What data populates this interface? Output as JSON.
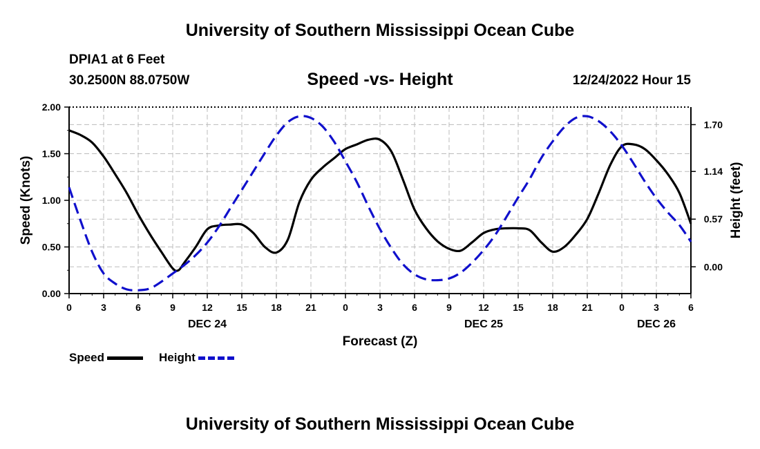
{
  "header": {
    "title": "University of Southern Mississippi Ocean Cube",
    "station": "DPIA1 at 6 Feet",
    "coords": "30.2500N  88.0750W",
    "subtitle": "Speed -vs- Height",
    "datetime": "12/24/2022 Hour 15"
  },
  "footer": {
    "title": "University of Southern Mississippi Ocean Cube"
  },
  "legend": {
    "speed_label": "Speed",
    "height_label": "Height"
  },
  "chart_data": {
    "type": "line",
    "title": "Speed -vs- Height",
    "xlabel": "Forecast (Z)",
    "ylabel": "Speed (Knots)",
    "y2label": "Height (feet)",
    "x_range": [
      0,
      54
    ],
    "x_tick_values": [
      0,
      3,
      6,
      9,
      12,
      15,
      18,
      21,
      24,
      27,
      30,
      33,
      36,
      39,
      42,
      45,
      48,
      51,
      54
    ],
    "x_tick_labels": [
      "0",
      "3",
      "6",
      "9",
      "12",
      "15",
      "18",
      "21",
      "0",
      "3",
      "6",
      "9",
      "12",
      "15",
      "18",
      "21",
      "0",
      "3",
      "6"
    ],
    "date_labels": [
      {
        "x": 12,
        "label": "DEC 24"
      },
      {
        "x": 36,
        "label": "DEC 25"
      },
      {
        "x": 51,
        "label": "DEC 26"
      }
    ],
    "y_left": {
      "ylim": [
        0,
        2
      ],
      "ticks": [
        0,
        0.5,
        1,
        1.5,
        2
      ],
      "tick_labels": [
        "0.00",
        "0.50",
        "1.00",
        "1.50",
        "2.00"
      ]
    },
    "y_right": {
      "ylim": [
        -0.32,
        1.91
      ],
      "ticks": [
        0,
        0.57,
        1.14,
        1.7
      ],
      "tick_labels": [
        "0.00",
        "0.57",
        "1.14",
        "1.70"
      ]
    },
    "grid": true,
    "series": [
      {
        "name": "Speed",
        "axis": "left",
        "color": "#000000",
        "style": "solid",
        "x": [
          0,
          1,
          2,
          3,
          4,
          5,
          6,
          7,
          8,
          9,
          9.5,
          10,
          11,
          12,
          13,
          14,
          15,
          16,
          17,
          18,
          19,
          20,
          21,
          22,
          23,
          24,
          25,
          26,
          27,
          28,
          29,
          30,
          31,
          32,
          33,
          34,
          35,
          36,
          37,
          38,
          39,
          40,
          41,
          42,
          43,
          44,
          45,
          46,
          47,
          48,
          49,
          50,
          51,
          52,
          53,
          54
        ],
        "y": [
          1.75,
          1.7,
          1.62,
          1.47,
          1.28,
          1.08,
          0.85,
          0.64,
          0.45,
          0.27,
          0.25,
          0.33,
          0.5,
          0.69,
          0.73,
          0.74,
          0.74,
          0.65,
          0.5,
          0.44,
          0.58,
          0.98,
          1.22,
          1.35,
          1.45,
          1.55,
          1.6,
          1.65,
          1.65,
          1.52,
          1.22,
          0.9,
          0.7,
          0.56,
          0.48,
          0.46,
          0.55,
          0.65,
          0.69,
          0.7,
          0.7,
          0.68,
          0.55,
          0.45,
          0.5,
          0.63,
          0.8,
          1.08,
          1.38,
          1.58,
          1.6,
          1.55,
          1.43,
          1.28,
          1.08,
          0.75
        ]
      },
      {
        "name": "Height",
        "axis": "right",
        "color": "#1010cc",
        "style": "dashed",
        "x": [
          0,
          1,
          2,
          3,
          4,
          5,
          6,
          7,
          8,
          9,
          10,
          11,
          12,
          13,
          14,
          15,
          16,
          17,
          18,
          19,
          20,
          21,
          22,
          23,
          24,
          25,
          26,
          27,
          28,
          29,
          30,
          31,
          32,
          33,
          34,
          35,
          36,
          37,
          38,
          39,
          40,
          41,
          42,
          43,
          44,
          45,
          46,
          47,
          48,
          49,
          50,
          51,
          52,
          53,
          54
        ],
        "y": [
          0.95,
          0.55,
          0.18,
          -0.08,
          -0.2,
          -0.27,
          -0.28,
          -0.26,
          -0.18,
          -0.08,
          0.02,
          0.14,
          0.29,
          0.48,
          0.7,
          0.92,
          1.14,
          1.36,
          1.57,
          1.73,
          1.8,
          1.78,
          1.68,
          1.5,
          1.26,
          1.01,
          0.72,
          0.45,
          0.22,
          0.03,
          -0.09,
          -0.15,
          -0.16,
          -0.14,
          -0.07,
          0.05,
          0.2,
          0.38,
          0.6,
          0.83,
          1.05,
          1.3,
          1.5,
          1.67,
          1.78,
          1.8,
          1.74,
          1.62,
          1.45,
          1.24,
          1.02,
          0.82,
          0.65,
          0.5,
          0.3
        ]
      }
    ]
  }
}
